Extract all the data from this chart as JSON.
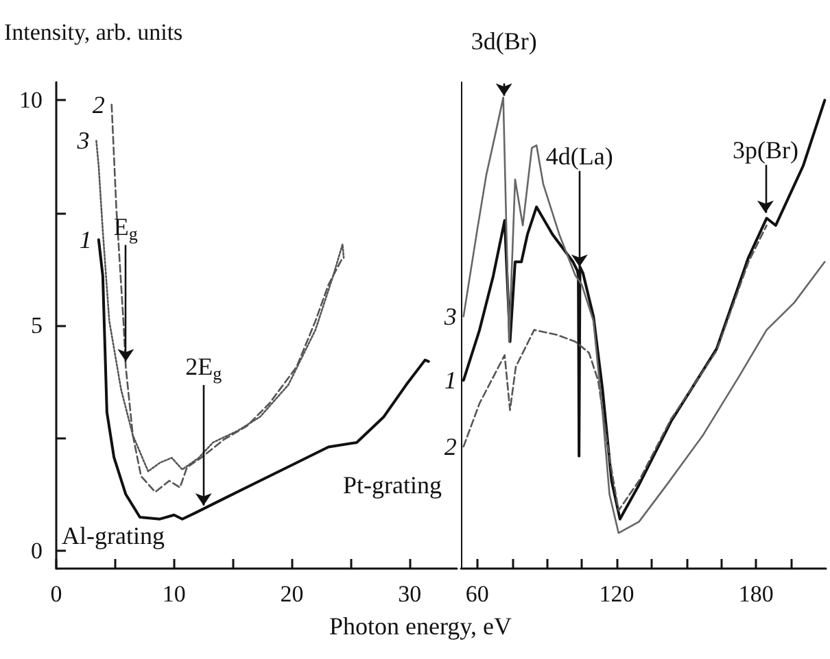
{
  "chart_data": [
    {
      "type": "line",
      "ylabel": "Intensity, arb. units",
      "xlabel": "Photon energy, eV",
      "xlim": [
        0,
        34
      ],
      "ylim": [
        -0.4,
        10.4
      ],
      "xticks": [
        0,
        {
          "value": 5,
          "label": null
        },
        10,
        {
          "value": 15,
          "label": null
        },
        20,
        {
          "value": 25,
          "label": null
        },
        30
      ],
      "yticks": [
        0,
        {
          "value": 2.5,
          "label": null
        },
        5,
        {
          "value": 7.5,
          "label": null
        },
        10
      ],
      "annotations": [
        {
          "text": "E$_{g}$",
          "x": 5.9,
          "y": 4.2
        },
        {
          "text": "2E$_{g}$",
          "x": 12.5,
          "y": 1.0
        },
        "Pt-grating",
        "Al-grating"
      ],
      "series": [
        {
          "name": "1",
          "color": "#111111",
          "line_style": "solid",
          "x": [
            3.6,
            3.95,
            4.3,
            4.9,
            5.9,
            7.1,
            8.8,
            10,
            10.7,
            11.9,
            14.2,
            17.3,
            20.4,
            23.1,
            25.5,
            27.8,
            29.7,
            31.3,
            31.6
          ],
          "values": [
            6.9,
            6.1,
            3.07,
            2.07,
            1.25,
            0.74,
            0.7,
            0.79,
            0.7,
            0.85,
            1.15,
            1.55,
            1.95,
            2.3,
            2.4,
            2.97,
            3.68,
            4.23,
            4.2
          ]
        },
        {
          "name": "2",
          "color": "#555555",
          "line_style": "dashed",
          "x": [
            4.7,
            5.1,
            5.7,
            5.9,
            6.5,
            7.2,
            8.4,
            9.6,
            10.5,
            11.1,
            12.3,
            14.2,
            16.2,
            18.1,
            20.4,
            22,
            23.1,
            24.3
          ],
          "values": [
            9.9,
            7.6,
            5.1,
            4.08,
            2.56,
            1.65,
            1.3,
            1.55,
            1.4,
            1.85,
            2.06,
            2.46,
            2.77,
            3.27,
            4.08,
            5.1,
            5.9,
            6.5
          ]
        },
        {
          "name": "3",
          "color": "#555555",
          "line_style": "dotted",
          "x": [
            3.4,
            3.6,
            3.95,
            4.5,
            5.5,
            6.5,
            7.8,
            8.8,
            9.8,
            10.7,
            12.1,
            13.3,
            15.4,
            17.3,
            19.7,
            22,
            23.5,
            24.3,
            24.4
          ],
          "values": [
            9.1,
            8.54,
            7.1,
            5.1,
            3.58,
            2.56,
            1.76,
            1.95,
            2.06,
            1.8,
            2.06,
            2.4,
            2.66,
            2.97,
            3.68,
            4.9,
            6.1,
            6.8,
            6.5
          ]
        }
      ]
    },
    {
      "type": "line",
      "tick_labels": "x",
      "xlim": [
        53,
        210
      ],
      "ylim": [
        -0.4,
        10.4
      ],
      "xticks": [
        60,
        {
          "value": 75,
          "label": null
        },
        {
          "value": 90,
          "label": null
        },
        {
          "value": 105,
          "label": null
        },
        120,
        {
          "value": 135,
          "label": null
        },
        {
          "value": 150,
          "label": null
        },
        {
          "value": 165,
          "label": null
        },
        180,
        {
          "value": 195,
          "label": null
        }
      ],
      "annotations": [
        {
          "text": "3d(Br)",
          "x": 71.5,
          "y": 10.1
        },
        {
          "text": "4d(La)",
          "x": 104,
          "y": 6.3
        },
        {
          "text": "3p(Br)",
          "x": 184,
          "y": 7.5
        }
      ],
      "series": [
        {
          "name": "1",
          "color": "#111111",
          "line_style": "solid",
          "x": [
            54.1,
            61,
            66.9,
            71.8,
            74.1,
            76.3,
            79,
            81.6,
            85.5,
            92.4,
            101.2,
            103.1,
            103.5,
            103.8,
            104.2,
            105.5,
            110,
            113.9,
            117.8,
            121.4,
            129.6,
            143.4,
            163,
            176.7,
            184.5,
            188.4,
            200.2,
            209.5
          ],
          "values": [
            3.78,
            4.9,
            6.1,
            7.33,
            4.64,
            6.41,
            6.41,
            7.02,
            7.63,
            7.02,
            6.41,
            6.21,
            6.1,
            2.1,
            6.3,
            6.16,
            5.2,
            3.58,
            1.55,
            0.7,
            1.46,
            2.87,
            4.48,
            6.51,
            7.38,
            7.22,
            8.54,
            10
          ]
        },
        {
          "name": "2",
          "color": "#555555",
          "line_style": "dashed",
          "x": [
            54.1,
            61,
            71.8,
            74.1,
            76.6,
            84.5,
            94.3,
            102.2,
            108.1,
            112,
            116.9,
            120.8,
            129.6,
            143.4,
            163,
            176.7,
            184.5
          ],
          "values": [
            2.31,
            3.27,
            4.34,
            3.12,
            4.08,
            4.9,
            4.79,
            4.64,
            4.39,
            3.78,
            2.06,
            0.89,
            1.55,
            2.92,
            4.44,
            6.41,
            7.22
          ]
        },
        {
          "name": "3",
          "color": "#666666",
          "line_style": "solid",
          "x": [
            54.1,
            60,
            63.9,
            67.8,
            71.2,
            73.7,
            76.3,
            79.6,
            83.5,
            85.5,
            88.4,
            95.3,
            102.2,
            105,
            110,
            113.9,
            116.9,
            120.8,
            129.6,
            141.4,
            157.1,
            172.8,
            184.5,
            196.3,
            209.5
          ],
          "values": [
            5.2,
            7.12,
            8.34,
            9.25,
            10.06,
            4.64,
            8.24,
            7.22,
            8.94,
            9.0,
            8.14,
            7.02,
            6.11,
            5.9,
            5.1,
            3.07,
            1.25,
            0.39,
            0.64,
            1.45,
            2.56,
            3.88,
            4.9,
            5.5,
            6.41
          ]
        }
      ]
    }
  ]
}
